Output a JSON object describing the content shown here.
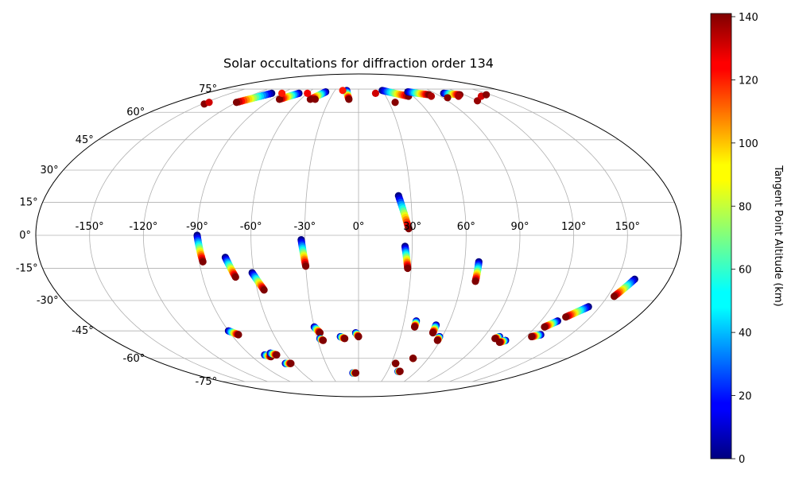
{
  "chart_data": {
    "type": "scatter",
    "projection": "mollweide",
    "title": "Solar occultations for diffraction order 134",
    "xlabel": "",
    "ylabel": "",
    "longitude_ticks": [
      "-150°",
      "-120°",
      "-90°",
      "-60°",
      "-30°",
      "0°",
      "30°",
      "60°",
      "90°",
      "120°",
      "150°"
    ],
    "latitude_ticks": [
      "75°",
      "60°",
      "45°",
      "30°",
      "15°",
      "0°",
      "-15°",
      "-30°",
      "-45°",
      "-60°",
      "-75°"
    ],
    "grid": true,
    "colorbar": {
      "label": "Tangent Point Altitude (km)",
      "colormap": "jet",
      "range": [
        0,
        141
      ],
      "ticks": [
        "0",
        "20",
        "40",
        "60",
        "80",
        "100",
        "120",
        "140"
      ]
    },
    "tracks": [
      {
        "lon_start": -90,
        "lat_start": 0,
        "lon_end": -88,
        "lat_end": -12
      },
      {
        "lon_start": -75,
        "lat_start": -10,
        "lon_end": -71,
        "lat_end": -19
      },
      {
        "lon_start": -61,
        "lat_start": -17,
        "lon_end": -56,
        "lat_end": -25
      },
      {
        "lon_start": -32,
        "lat_start": -2,
        "lon_end": -30,
        "lat_end": -14
      },
      {
        "lon_start": 23,
        "lat_start": 18,
        "lon_end": 28,
        "lat_end": 3
      },
      {
        "lon_start": 26,
        "lat_start": -5,
        "lon_end": 28,
        "lat_end": -15
      },
      {
        "lon_start": 68,
        "lat_start": -12,
        "lon_end": 68,
        "lat_end": -21
      },
      {
        "lon_start": 160,
        "lat_start": -20,
        "lon_end": 154,
        "lat_end": -28
      },
      {
        "lon_start": 143,
        "lat_start": -33,
        "lon_end": 134,
        "lat_end": -38
      },
      {
        "lon_start": 131,
        "lat_start": -40,
        "lon_end": 126,
        "lat_end": -43
      },
      {
        "lon_start": 129,
        "lat_start": -47,
        "lon_end": 124,
        "lat_end": -48
      },
      {
        "lon_start": -90,
        "lat_start": -45,
        "lon_end": -85,
        "lat_end": -47
      },
      {
        "lon_start": -30,
        "lat_start": -43,
        "lon_end": -27,
        "lat_end": -46
      },
      {
        "lon_start": -28,
        "lat_start": -49,
        "lon_end": -26,
        "lat_end": -50
      },
      {
        "lon_start": -13,
        "lat_start": -48,
        "lon_end": -10,
        "lat_end": -49
      },
      {
        "lon_start": -2,
        "lat_start": -46,
        "lon_end": 0,
        "lat_end": -48
      },
      {
        "lon_start": 38,
        "lat_start": -40,
        "lon_end": 38,
        "lat_end": -43
      },
      {
        "lon_start": 52,
        "lat_start": -42,
        "lon_end": 52,
        "lat_end": -46
      },
      {
        "lon_start": 58,
        "lat_start": -48,
        "lon_end": 58,
        "lat_end": -50
      },
      {
        "lon_start": 101,
        "lat_start": -48,
        "lon_end": 99,
        "lat_end": -49
      },
      {
        "lon_start": 108,
        "lat_start": -50,
        "lon_end": 105,
        "lat_end": -51
      },
      {
        "lon_start": -78,
        "lat_start": -58,
        "lon_end": -74,
        "lat_end": -59
      },
      {
        "lon_start": -72,
        "lat_start": -57,
        "lon_end": -68,
        "lat_end": -58
      },
      {
        "lon_start": -67,
        "lat_start": -63,
        "lon_end": -62,
        "lat_end": -63
      },
      {
        "lon_start": 34,
        "lat_start": -63,
        "lon_end": 34,
        "lat_end": -63
      },
      {
        "lon_start": 47,
        "lat_start": -60,
        "lon_end": 47,
        "lat_end": -60
      },
      {
        "lon_start": -6,
        "lat_start": -69,
        "lon_end": -3,
        "lat_end": -69
      },
      {
        "lon_start": 41,
        "lat_start": -68,
        "lon_end": 43,
        "lat_end": -68
      },
      {
        "lon_start": -102,
        "lat_start": 72,
        "lon_end": -120,
        "lat_end": 66
      },
      {
        "lon_start": -70,
        "lat_start": 72,
        "lon_end": -82,
        "lat_end": 68
      },
      {
        "lon_start": -40,
        "lat_start": 73,
        "lon_end": -50,
        "lat_end": 68
      },
      {
        "lon_start": -15,
        "lat_start": 74,
        "lon_end": -10,
        "lat_end": 68
      },
      {
        "lon_start": 30,
        "lat_start": 74,
        "lon_end": 55,
        "lat_end": 70
      },
      {
        "lon_start": 60,
        "lat_start": 73,
        "lon_end": 80,
        "lat_end": 71
      },
      {
        "lon_start": 100,
        "lat_start": 72,
        "lon_end": 115,
        "lat_end": 71
      }
    ],
    "high_points": [
      {
        "lon": -148,
        "lat": 65,
        "alt": 140
      },
      {
        "lon": -147,
        "lat": 66,
        "alt": 130
      },
      {
        "lon": -90,
        "lat": 72,
        "alt": 120
      },
      {
        "lon": -60,
        "lat": 72,
        "alt": 125
      },
      {
        "lon": -20,
        "lat": 74,
        "alt": 120
      },
      {
        "lon": -45,
        "lat": 68,
        "alt": 140
      },
      {
        "lon": 20,
        "lat": 72,
        "alt": 130
      },
      {
        "lon": 36,
        "lat": 66,
        "alt": 140
      },
      {
        "lon": 80,
        "lat": 70,
        "alt": 135
      },
      {
        "lon": 95,
        "lat": 69,
        "alt": 140
      },
      {
        "lon": 110,
        "lat": 70,
        "alt": 135
      },
      {
        "lon": 120,
        "lat": 67,
        "alt": 138
      },
      {
        "lon": 135,
        "lat": 70,
        "alt": 130
      },
      {
        "lon": 145,
        "lat": 71,
        "alt": 140
      }
    ]
  }
}
